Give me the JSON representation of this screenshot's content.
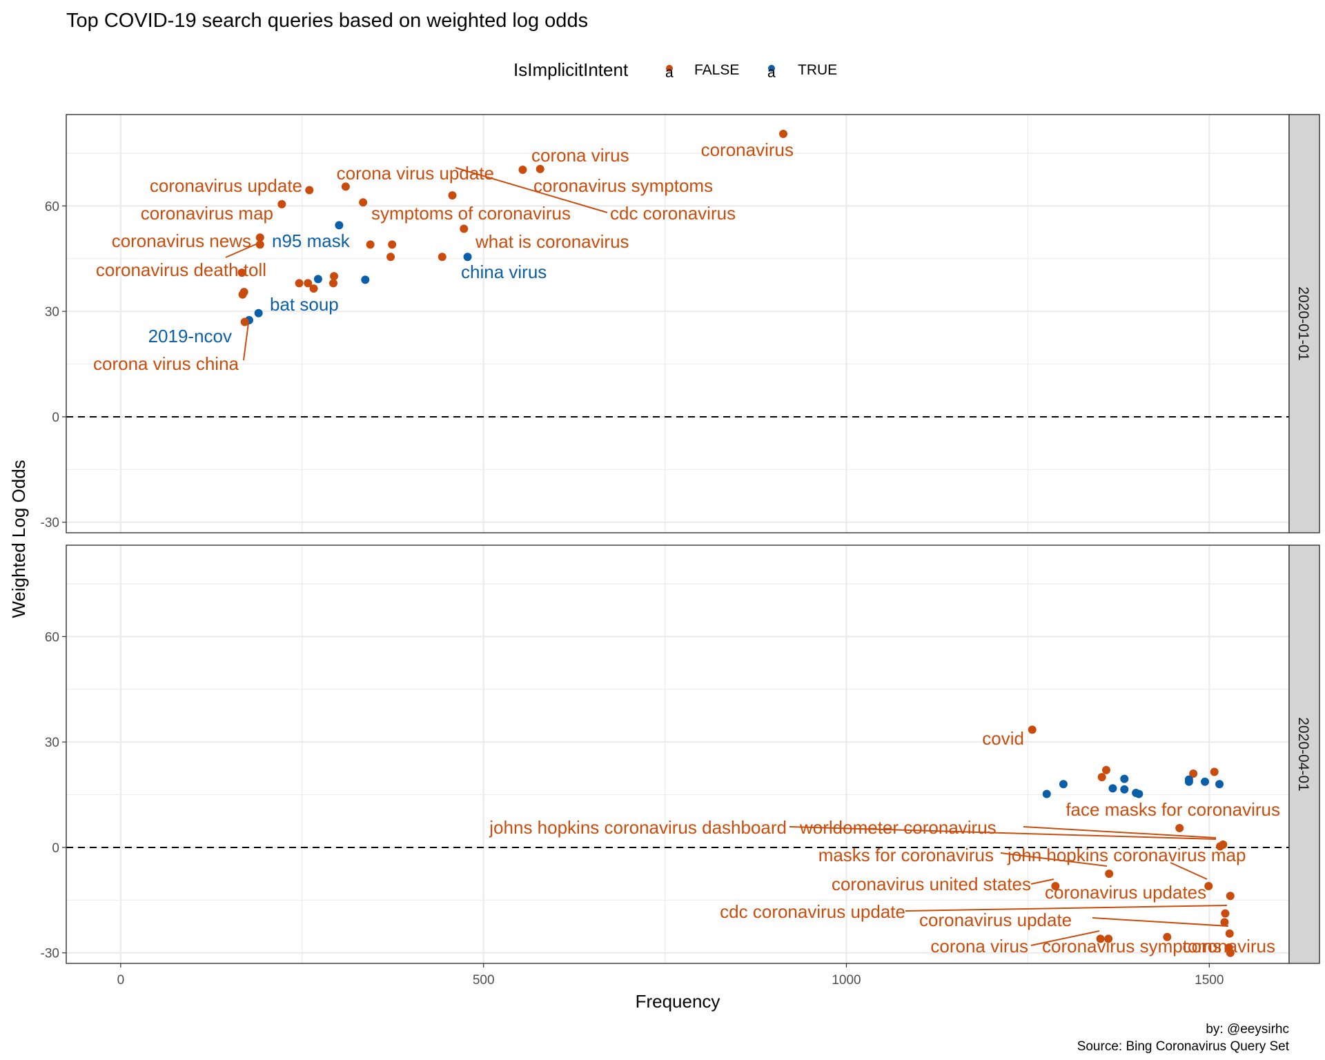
{
  "title": "Top COVID-19 search queries based on weighted log odds",
  "caption": [
    "by: @eeysirhc",
    "Source: Bing Coronavirus Query Set"
  ],
  "colors": {
    "FALSE": "#c94c0c",
    "TRUE": "#0b5ea8",
    "strip_bg": "#d4d4d4",
    "grid": "#ebebeb"
  },
  "chart_data": {
    "type": "scatter",
    "xlabel": "Frequency",
    "ylabel": "Weighted Log Odds",
    "xlim": [
      -75,
      1610
    ],
    "ylim": [
      -33,
      86
    ],
    "x_ticks": [
      0,
      500,
      1000,
      1500
    ],
    "y_ticks": [
      -30,
      0,
      30,
      60
    ],
    "grid": true,
    "reference_line": 0,
    "legend": {
      "title": "IsImplicitIntent",
      "position": "top",
      "key_glyph": "a",
      "entries": [
        "FALSE",
        "TRUE"
      ]
    },
    "facets": [
      {
        "strip": "2020-01-01",
        "points": [
          {
            "x": 913,
            "y": 80.5,
            "g": "FALSE"
          },
          {
            "x": 578,
            "y": 70.5,
            "g": "FALSE"
          },
          {
            "x": 554,
            "y": 70.3,
            "g": "FALSE"
          },
          {
            "x": 310,
            "y": 65.5,
            "g": "FALSE"
          },
          {
            "x": 260,
            "y": 64.5,
            "g": "FALSE"
          },
          {
            "x": 457,
            "y": 63.0,
            "g": "FALSE"
          },
          {
            "x": 334,
            "y": 61.0,
            "g": "FALSE"
          },
          {
            "x": 222,
            "y": 60.5,
            "g": "FALSE"
          },
          {
            "x": 301,
            "y": 54.5,
            "g": "TRUE"
          },
          {
            "x": 473,
            "y": 53.5,
            "g": "FALSE"
          },
          {
            "x": 192,
            "y": 51.0,
            "g": "FALSE"
          },
          {
            "x": 192,
            "y": 49.0,
            "g": "FALSE"
          },
          {
            "x": 344,
            "y": 49.0,
            "g": "FALSE"
          },
          {
            "x": 374,
            "y": 49.0,
            "g": "FALSE"
          },
          {
            "x": 372,
            "y": 45.5,
            "g": "FALSE"
          },
          {
            "x": 443,
            "y": 45.5,
            "g": "FALSE"
          },
          {
            "x": 478,
            "y": 45.5,
            "g": "TRUE"
          },
          {
            "x": 167,
            "y": 41.0,
            "g": "FALSE"
          },
          {
            "x": 294,
            "y": 40.0,
            "g": "FALSE"
          },
          {
            "x": 272,
            "y": 39.2,
            "g": "TRUE"
          },
          {
            "x": 337,
            "y": 39.0,
            "g": "TRUE"
          },
          {
            "x": 246,
            "y": 38.0,
            "g": "FALSE"
          },
          {
            "x": 258,
            "y": 38.0,
            "g": "FALSE"
          },
          {
            "x": 293,
            "y": 38.0,
            "g": "FALSE"
          },
          {
            "x": 266,
            "y": 36.5,
            "g": "FALSE"
          },
          {
            "x": 170,
            "y": 35.5,
            "g": "FALSE"
          },
          {
            "x": 168,
            "y": 34.8,
            "g": "FALSE"
          },
          {
            "x": 190,
            "y": 29.5,
            "g": "TRUE"
          },
          {
            "x": 177,
            "y": 27.5,
            "g": "TRUE"
          },
          {
            "x": 171,
            "y": 27.0,
            "g": "FALSE"
          }
        ],
        "labels": [
          {
            "text": "coronavirus",
            "g": "FALSE"
          },
          {
            "text": "corona virus",
            "g": "FALSE"
          },
          {
            "text": "coronavirus symptoms",
            "g": "FALSE"
          },
          {
            "text": "corona virus update",
            "g": "FALSE"
          },
          {
            "text": "coronavirus update",
            "g": "FALSE"
          },
          {
            "text": "coronavirus map",
            "g": "FALSE"
          },
          {
            "text": "symptoms of coronavirus",
            "g": "FALSE"
          },
          {
            "text": "cdc coronavirus",
            "g": "FALSE"
          },
          {
            "text": "coronavirus news",
            "g": "FALSE"
          },
          {
            "text": "n95 mask",
            "g": "TRUE"
          },
          {
            "text": "what is coronavirus",
            "g": "FALSE"
          },
          {
            "text": "coronavirus death toll",
            "g": "FALSE"
          },
          {
            "text": "china virus",
            "g": "TRUE"
          },
          {
            "text": "bat soup",
            "g": "TRUE"
          },
          {
            "text": "2019-ncov",
            "g": "TRUE"
          },
          {
            "text": "corona virus china",
            "g": "FALSE"
          }
        ]
      },
      {
        "strip": "2020-04-01",
        "points": [
          {
            "x": 1256,
            "y": 33.5,
            "g": "FALSE"
          },
          {
            "x": 1358,
            "y": 22.0,
            "g": "FALSE"
          },
          {
            "x": 1352,
            "y": 20.0,
            "g": "FALSE"
          },
          {
            "x": 1478,
            "y": 21.0,
            "g": "FALSE"
          },
          {
            "x": 1507,
            "y": 21.5,
            "g": "FALSE"
          },
          {
            "x": 1383,
            "y": 19.5,
            "g": "TRUE"
          },
          {
            "x": 1472,
            "y": 19.3,
            "g": "TRUE"
          },
          {
            "x": 1472,
            "y": 18.7,
            "g": "TRUE"
          },
          {
            "x": 1494,
            "y": 18.7,
            "g": "TRUE"
          },
          {
            "x": 1514,
            "y": 18.0,
            "g": "TRUE"
          },
          {
            "x": 1299,
            "y": 18.0,
            "g": "TRUE"
          },
          {
            "x": 1367,
            "y": 16.8,
            "g": "TRUE"
          },
          {
            "x": 1383,
            "y": 16.5,
            "g": "TRUE"
          },
          {
            "x": 1399,
            "y": 15.5,
            "g": "TRUE"
          },
          {
            "x": 1403,
            "y": 15.2,
            "g": "TRUE"
          },
          {
            "x": 1276,
            "y": 15.2,
            "g": "TRUE"
          },
          {
            "x": 1459,
            "y": 5.5,
            "g": "FALSE"
          },
          {
            "x": 1519,
            "y": 0.8,
            "g": "FALSE"
          },
          {
            "x": 1515,
            "y": 0.3,
            "g": "FALSE"
          },
          {
            "x": 1362,
            "y": -7.5,
            "g": "FALSE"
          },
          {
            "x": 1288,
            "y": -11.0,
            "g": "FALSE"
          },
          {
            "x": 1499,
            "y": -11.0,
            "g": "FALSE"
          },
          {
            "x": 1529,
            "y": -13.8,
            "g": "FALSE"
          },
          {
            "x": 1522,
            "y": -18.8,
            "g": "FALSE"
          },
          {
            "x": 1521,
            "y": -21.3,
            "g": "FALSE"
          },
          {
            "x": 1528,
            "y": -24.5,
            "g": "FALSE"
          },
          {
            "x": 1442,
            "y": -25.5,
            "g": "FALSE"
          },
          {
            "x": 1350,
            "y": -26.0,
            "g": "FALSE"
          },
          {
            "x": 1361,
            "y": -26.0,
            "g": "FALSE"
          },
          {
            "x": 1527,
            "y": -28.5,
            "g": "FALSE"
          },
          {
            "x": 1529,
            "y": -30.0,
            "g": "FALSE"
          }
        ],
        "labels": [
          {
            "text": "covid",
            "g": "FALSE"
          },
          {
            "text": "face masks for coronavirus",
            "g": "FALSE"
          },
          {
            "text": "johns hopkins coronavirus dashboard",
            "g": "FALSE"
          },
          {
            "text": "worldometer coronavirus",
            "g": "FALSE"
          },
          {
            "text": "masks for coronavirus",
            "g": "FALSE"
          },
          {
            "text": "john hopkins coronavirus map",
            "g": "FALSE"
          },
          {
            "text": "coronavirus united states",
            "g": "FALSE"
          },
          {
            "text": "coronavirus updates",
            "g": "FALSE"
          },
          {
            "text": "cdc coronavirus update",
            "g": "FALSE"
          },
          {
            "text": "coronavirus update",
            "g": "FALSE"
          },
          {
            "text": "corona virus",
            "g": "FALSE"
          },
          {
            "text": "coronavirus symptoms",
            "g": "FALSE"
          },
          {
            "text": "coronavirus",
            "g": "FALSE"
          }
        ]
      }
    ]
  }
}
